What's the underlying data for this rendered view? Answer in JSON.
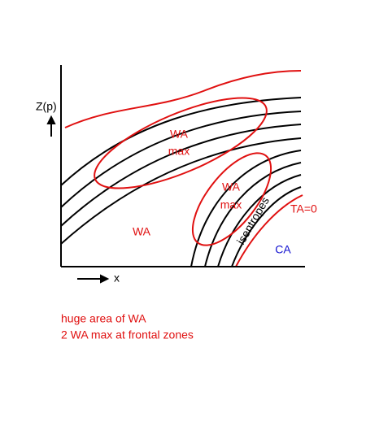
{
  "axes": {
    "y_label": "Z(p)",
    "x_label": "x"
  },
  "regions": {
    "wa_max_upper": [
      "WA",
      "max"
    ],
    "wa_max_lower": [
      "WA",
      "max"
    ],
    "wa": "WA",
    "isentropes": "isentropes",
    "ta_zero": "TA=0",
    "ca": "CA"
  },
  "notes": [
    "huge area of WA",
    "2 WA max at frontal zones"
  ]
}
